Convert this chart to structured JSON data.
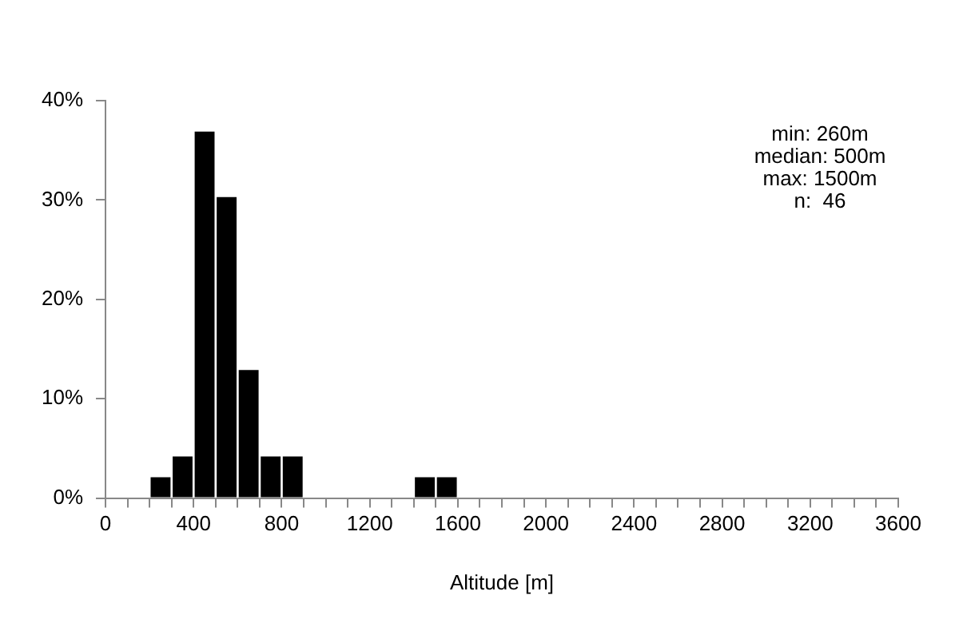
{
  "chart_data": {
    "type": "histogram",
    "xlabel": "Altitude [m]",
    "bins": [
      200,
      300,
      400,
      500,
      600,
      700,
      800,
      900,
      1000,
      1100,
      1200,
      1300,
      1400,
      1500,
      1600
    ],
    "values": [
      2.2,
      4.3,
      37,
      30.4,
      13,
      4.3,
      4.3,
      0,
      0,
      0,
      0,
      0,
      2.2,
      2.2
    ],
    "color": "#000000",
    "xlim": [
      0,
      3600
    ],
    "xticks": [
      0,
      {
        "value": 100,
        "label": null
      },
      {
        "value": 200,
        "label": null
      },
      {
        "value": 300,
        "label": null
      },
      400,
      {
        "value": 500,
        "label": null
      },
      {
        "value": 600,
        "label": null
      },
      {
        "value": 700,
        "label": null
      },
      800,
      {
        "value": 900,
        "label": null
      },
      {
        "value": 1000,
        "label": null
      },
      {
        "value": 1100,
        "label": null
      },
      1200,
      {
        "value": 1300,
        "label": null
      },
      {
        "value": 1400,
        "label": null
      },
      {
        "value": 1500,
        "label": null
      },
      1600,
      {
        "value": 1700,
        "label": null
      },
      {
        "value": 1800,
        "label": null
      },
      {
        "value": 1900,
        "label": null
      },
      2000,
      {
        "value": 2100,
        "label": null
      },
      {
        "value": 2200,
        "label": null
      },
      {
        "value": 2300,
        "label": null
      },
      2400,
      {
        "value": 2500,
        "label": null
      },
      {
        "value": 2600,
        "label": null
      },
      {
        "value": 2700,
        "label": null
      },
      2800,
      {
        "value": 2900,
        "label": null
      },
      {
        "value": 3000,
        "label": null
      },
      {
        "value": 3100,
        "label": null
      },
      3200,
      {
        "value": 3300,
        "label": null
      },
      {
        "value": 3400,
        "label": null
      },
      {
        "value": 3500,
        "label": null
      },
      3600
    ],
    "ylim": [
      0,
      40
    ],
    "yticks": [
      {
        "value": 0,
        "label": "0%"
      },
      {
        "value": 10,
        "label": "10%"
      },
      {
        "value": 20,
        "label": "20%"
      },
      {
        "value": 30,
        "label": "30%"
      },
      {
        "value": 40,
        "label": "40%"
      }
    ],
    "grid": false,
    "legend": false,
    "annotations": [
      "min: 260m",
      "median: 500m",
      "max: 1500m",
      "n:  46"
    ]
  }
}
